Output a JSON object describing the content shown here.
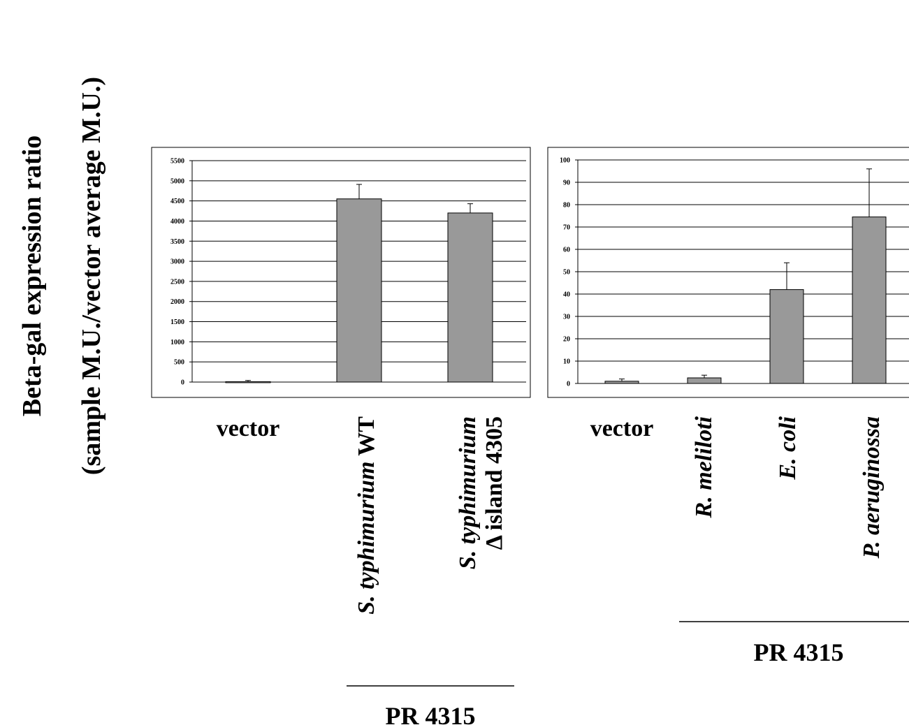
{
  "ylabel_line1": "Beta-gal expression ratio",
  "ylabel_line2": "(sample M.U./vector average M.U.)",
  "chart_data": [
    {
      "type": "bar",
      "categories": [
        "vector",
        "S. typhimurium WT",
        "S. typhimurium Δ island 4305"
      ],
      "category_labels": [
        {
          "parts": [
            {
              "text": "vector",
              "italic": false
            }
          ]
        },
        {
          "parts": [
            {
              "text": "S. typhimurium",
              "italic": true
            },
            {
              "text": " WT",
              "italic": false
            }
          ]
        },
        {
          "parts": [
            {
              "text": "S. typhimurium",
              "italic": true
            }
          ],
          "line2": "Δ island 4305"
        }
      ],
      "values": [
        10,
        4550,
        4200
      ],
      "errors": [
        30,
        360,
        230
      ],
      "ylim": [
        0,
        5500
      ],
      "yticks": [
        0,
        500,
        1000,
        1500,
        2000,
        2500,
        3000,
        3500,
        4000,
        4500,
        5000,
        5500
      ],
      "grid": true,
      "bar_color": "#999999",
      "group_label": "PR 4315"
    },
    {
      "type": "bar",
      "categories": [
        "vector",
        "R. meliloti",
        "E. coli",
        "P. aeruginossa"
      ],
      "category_labels": [
        {
          "parts": [
            {
              "text": "vector",
              "italic": false
            }
          ]
        },
        {
          "parts": [
            {
              "text": "R. meliloti",
              "italic": true
            }
          ]
        },
        {
          "parts": [
            {
              "text": "E. coli",
              "italic": true
            }
          ]
        },
        {
          "parts": [
            {
              "text": "P. aeruginossa",
              "italic": true
            }
          ]
        }
      ],
      "values": [
        1,
        2.5,
        42,
        74.5
      ],
      "errors": [
        1,
        1.2,
        12,
        21.5
      ],
      "ylim": [
        0,
        100
      ],
      "yticks": [
        0,
        10,
        20,
        30,
        40,
        50,
        60,
        70,
        80,
        90,
        100
      ],
      "grid": true,
      "bar_color": "#999999",
      "group_label": "PR 4315"
    }
  ]
}
